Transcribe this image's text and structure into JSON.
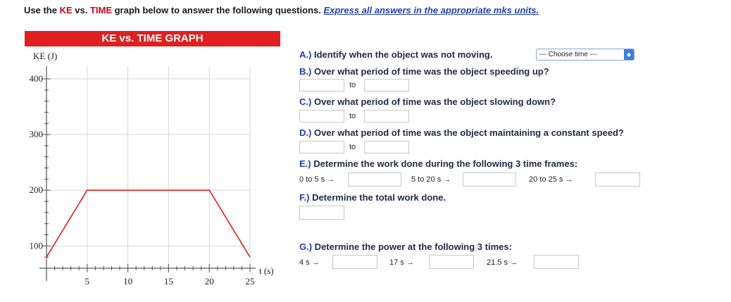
{
  "instructions": {
    "part1": "Use the ",
    "ke": "KE",
    "vs": " vs. ",
    "time": "TIME",
    "part2": " graph below to answer the following questions. ",
    "link": "Express all answers in the appropriate mks units."
  },
  "chart_data": {
    "type": "line",
    "title": "KE vs. TIME GRAPH",
    "ylabel": "KE (J)",
    "xlabel": "t (s)",
    "x": [
      0,
      5,
      20,
      25
    ],
    "y": [
      80,
      200,
      200,
      80
    ],
    "xlim": [
      0,
      25
    ],
    "ylim": [
      60,
      400
    ],
    "x_ticks": [
      5,
      10,
      15,
      20,
      25
    ],
    "y_ticks": [
      100,
      200,
      300,
      400
    ],
    "grid": true,
    "line_color": "#e02020"
  },
  "questions": {
    "a": {
      "label": "A.)",
      "text": " Identify when the object was not moving.",
      "select_value": "--- Choose time ---"
    },
    "b": {
      "label": "B.)",
      "text": " Over what period of time was the object speeding up?",
      "to": "to"
    },
    "c": {
      "label": "C.)",
      "text": " Over what period of time was the object slowing down?",
      "to": "to"
    },
    "d": {
      "label": "D.)",
      "text": " Over what period of time was the object maintaining a constant speed?",
      "to": "to"
    },
    "e": {
      "label": "E.)",
      "text": " Determine the work done during the following 3 time frames:",
      "frames": [
        "0 to 5 s →",
        "5 to 20 s →",
        "20 to 25 s →"
      ]
    },
    "f": {
      "label": "F.)",
      "text": " Determine the total work done."
    },
    "g": {
      "label": "G.)",
      "text": " Determine the power at the following 3 times:",
      "times": [
        "4 s →",
        "17 s →",
        "21.5 s →"
      ]
    }
  }
}
